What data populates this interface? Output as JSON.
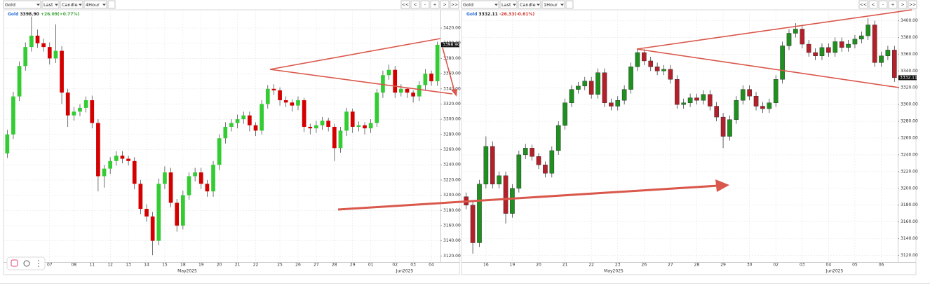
{
  "toolbars": [
    {
      "symbol": "Gold",
      "field": "Last",
      "style": "Candle",
      "interval": "4Hour",
      "nav": [
        "<<",
        "<",
        "-",
        "+",
        ">",
        ">>"
      ],
      "quote": {
        "symbol": "Gold",
        "price": "3398.90",
        "change": "+26.09(+0.77%)"
      }
    },
    {
      "symbol": "Gold",
      "field": "Last",
      "style": "Candle",
      "interval": "1Hour",
      "nav": [
        "<<",
        "<",
        "-",
        "+",
        ">",
        ">>"
      ],
      "quote": {
        "symbol": "Gold",
        "price": "3332.11",
        "change": "-26.33(-0.61%)"
      }
    }
  ],
  "chart_data": [
    {
      "type": "candlestick",
      "up_color": "#33cc33",
      "down_color": "#d40000",
      "change_color": "#3aa635",
      "grid": true,
      "ylim": [
        3112,
        3444
      ],
      "yticks": [
        {
          "value": 3120,
          "label": "3120.00"
        },
        {
          "value": 3140,
          "label": "3140.00"
        },
        {
          "value": 3160,
          "label": "3160.00"
        },
        {
          "value": 3180,
          "label": "3180.00"
        },
        {
          "value": 3200,
          "label": "3200.00"
        },
        {
          "value": 3220,
          "label": "3220.00"
        },
        {
          "value": 3240,
          "label": "3240.00"
        },
        {
          "value": 3260,
          "label": "3260.00"
        },
        {
          "value": 3280,
          "label": "3280.00"
        },
        {
          "value": 3300,
          "label": "3300.00"
        },
        {
          "value": 3320,
          "label": "3320.00"
        },
        {
          "value": 3340,
          "label": "3340.00"
        },
        {
          "value": 3360,
          "label": "3360.00"
        },
        {
          "value": 3380,
          "label": "3380.00"
        },
        {
          "value": 3400,
          "label": "3400.00"
        },
        {
          "value": 3420,
          "label": "3420.00"
        }
      ],
      "categories": [
        null,
        null,
        null,
        null,
        null,
        null,
        null,
        "07",
        null,
        null,
        null,
        "08",
        null,
        null,
        "11",
        null,
        null,
        "12",
        null,
        null,
        "13",
        null,
        null,
        "14",
        null,
        null,
        "15",
        null,
        null,
        "18",
        null,
        null,
        "19",
        null,
        null,
        "20",
        null,
        null,
        "21",
        null,
        null,
        "22",
        null,
        null,
        null,
        "25",
        null,
        null,
        "26",
        null,
        null,
        "27",
        null,
        null,
        "28",
        null,
        null,
        "29",
        null,
        null,
        "01",
        null,
        null,
        null,
        "02",
        null,
        null,
        "03",
        null,
        null,
        "04",
        null
      ],
      "x_periods": [
        "May2025",
        "Jun2025"
      ],
      "open": [
        3255,
        3280,
        3330,
        3370,
        3395,
        3410,
        3400,
        3395,
        3380,
        3390,
        3335,
        3305,
        3310,
        3315,
        3325,
        3295,
        3225,
        3235,
        3245,
        3252,
        3248,
        3245,
        3215,
        3182,
        3172,
        3140,
        3215,
        3230,
        3190,
        3160,
        3200,
        3225,
        3230,
        3215,
        3205,
        3240,
        3275,
        3290,
        3295,
        3300,
        3305,
        3292,
        3285,
        3320,
        3340,
        3338,
        3325,
        3322,
        3318,
        3325,
        3290,
        3288,
        3292,
        3298,
        3290,
        3262,
        3285,
        3310,
        3290,
        3292,
        3288,
        3295,
        3335,
        3358,
        3365,
        3335,
        3340,
        3335,
        3330,
        3345,
        3360,
        3350
      ],
      "high": [
        3286,
        3336,
        3376,
        3401,
        3435,
        3418,
        3406,
        3401,
        3425,
        3396,
        3340,
        3316,
        3320,
        3330,
        3331,
        3300,
        3240,
        3250,
        3258,
        3258,
        3252,
        3250,
        3220,
        3188,
        3178,
        3222,
        3238,
        3236,
        3195,
        3206,
        3230,
        3236,
        3236,
        3220,
        3245,
        3280,
        3296,
        3300,
        3306,
        3310,
        3310,
        3296,
        3325,
        3345,
        3346,
        3342,
        3330,
        3326,
        3330,
        3328,
        3294,
        3298,
        3303,
        3302,
        3294,
        3290,
        3315,
        3314,
        3297,
        3296,
        3300,
        3340,
        3364,
        3372,
        3370,
        3346,
        3342,
        3338,
        3350,
        3366,
        3364,
        3402
      ],
      "low": [
        3249,
        3274,
        3324,
        3364,
        3389,
        3394,
        3389,
        3372,
        3374,
        3320,
        3290,
        3298,
        3304,
        3309,
        3288,
        3205,
        3210,
        3228,
        3239,
        3242,
        3239,
        3208,
        3175,
        3165,
        3121,
        3134,
        3208,
        3184,
        3152,
        3155,
        3194,
        3218,
        3208,
        3198,
        3198,
        3233,
        3268,
        3284,
        3288,
        3294,
        3284,
        3278,
        3280,
        3314,
        3332,
        3318,
        3316,
        3310,
        3312,
        3283,
        3280,
        3282,
        3286,
        3284,
        3245,
        3256,
        3278,
        3282,
        3284,
        3280,
        3282,
        3290,
        3328,
        3352,
        3328,
        3330,
        3328,
        3322,
        3324,
        3338,
        3344,
        3344
      ],
      "close": [
        3280,
        3330,
        3370,
        3395,
        3410,
        3400,
        3395,
        3380,
        3390,
        3335,
        3305,
        3310,
        3315,
        3325,
        3295,
        3225,
        3235,
        3245,
        3252,
        3248,
        3245,
        3215,
        3182,
        3172,
        3140,
        3215,
        3230,
        3190,
        3160,
        3200,
        3225,
        3230,
        3215,
        3205,
        3240,
        3275,
        3290,
        3295,
        3300,
        3305,
        3292,
        3285,
        3320,
        3340,
        3338,
        3325,
        3322,
        3318,
        3325,
        3290,
        3288,
        3292,
        3298,
        3290,
        3262,
        3285,
        3310,
        3290,
        3292,
        3288,
        3295,
        3335,
        3358,
        3365,
        3335,
        3340,
        3335,
        3330,
        3345,
        3360,
        3350,
        3398
      ]
    },
    {
      "type": "candlestick",
      "up_color": "#1f8f1f",
      "down_color": "#b3202a",
      "change_color": "#d0352b",
      "grid": true,
      "ylim": [
        3112,
        3413
      ],
      "yticks": [
        {
          "value": 3120,
          "label": "3120.00"
        },
        {
          "value": 3140,
          "label": "3140.00"
        },
        {
          "value": 3160,
          "label": "3160.00"
        },
        {
          "value": 3180,
          "label": "3180.00"
        },
        {
          "value": 3200,
          "label": "3200.00"
        },
        {
          "value": 3220,
          "label": "3220.00"
        },
        {
          "value": 3240,
          "label": "3240.00"
        },
        {
          "value": 3260,
          "label": "3260.00"
        },
        {
          "value": 3280,
          "label": "3280.00"
        },
        {
          "value": 3300,
          "label": "3300.00"
        },
        {
          "value": 3320,
          "label": "3320.00"
        },
        {
          "value": 3340,
          "label": "3340.00"
        },
        {
          "value": 3360,
          "label": "3360.00"
        },
        {
          "value": 3380,
          "label": "3380.00"
        },
        {
          "value": 3400,
          "label": "3400.00"
        }
      ],
      "categories": [
        null,
        null,
        null,
        "16",
        null,
        null,
        null,
        "19",
        null,
        null,
        null,
        "20",
        null,
        null,
        null,
        "21",
        null,
        null,
        null,
        "22",
        null,
        null,
        null,
        "23",
        null,
        null,
        null,
        "26",
        null,
        null,
        null,
        "27",
        null,
        null,
        null,
        "28",
        null,
        null,
        null,
        "29",
        null,
        null,
        null,
        "30",
        null,
        null,
        null,
        "02",
        null,
        null,
        null,
        "03",
        null,
        null,
        null,
        "04",
        null,
        null,
        null,
        "05",
        null,
        null,
        null,
        "06",
        null,
        null
      ],
      "x_periods": [
        "May2025",
        "Jun2025"
      ],
      "open": [
        3190,
        3180,
        3135,
        3205,
        3250,
        3205,
        3215,
        3170,
        3200,
        3240,
        3248,
        3238,
        3228,
        3218,
        3245,
        3275,
        3302,
        3318,
        3322,
        3328,
        3312,
        3338,
        3302,
        3298,
        3305,
        3318,
        3345,
        3362,
        3352,
        3345,
        3340,
        3342,
        3330,
        3300,
        3302,
        3308,
        3305,
        3312,
        3298,
        3285,
        3262,
        3282,
        3305,
        3318,
        3310,
        3298,
        3295,
        3302,
        3330,
        3370,
        3385,
        3390,
        3372,
        3362,
        3358,
        3368,
        3362,
        3375,
        3368,
        3372,
        3378,
        3382,
        3395,
        3350,
        3358,
        3365
      ],
      "high": [
        3195,
        3185,
        3210,
        3262,
        3256,
        3220,
        3220,
        3205,
        3245,
        3253,
        3252,
        3242,
        3232,
        3250,
        3280,
        3307,
        3323,
        3327,
        3333,
        3333,
        3343,
        3343,
        3307,
        3310,
        3323,
        3350,
        3367,
        3366,
        3357,
        3350,
        3347,
        3347,
        3335,
        3307,
        3313,
        3313,
        3317,
        3317,
        3303,
        3290,
        3287,
        3310,
        3323,
        3323,
        3315,
        3303,
        3307,
        3335,
        3375,
        3390,
        3397,
        3395,
        3377,
        3367,
        3373,
        3373,
        3380,
        3380,
        3377,
        3383,
        3387,
        3403,
        3400,
        3363,
        3370,
        3370
      ],
      "low": [
        3175,
        3122,
        3130,
        3200,
        3200,
        3200,
        3158,
        3165,
        3195,
        3235,
        3233,
        3223,
        3213,
        3213,
        3240,
        3270,
        3297,
        3313,
        3317,
        3307,
        3307,
        3297,
        3293,
        3293,
        3300,
        3313,
        3340,
        3347,
        3340,
        3335,
        3335,
        3325,
        3295,
        3295,
        3297,
        3300,
        3300,
        3293,
        3280,
        3248,
        3257,
        3277,
        3300,
        3305,
        3293,
        3290,
        3290,
        3297,
        3325,
        3365,
        3380,
        3367,
        3357,
        3353,
        3353,
        3357,
        3357,
        3363,
        3363,
        3367,
        3373,
        3377,
        3345,
        3345,
        3353,
        3327
      ],
      "close": [
        3180,
        3135,
        3205,
        3250,
        3205,
        3215,
        3170,
        3200,
        3240,
        3248,
        3238,
        3228,
        3218,
        3245,
        3275,
        3302,
        3318,
        3322,
        3328,
        3312,
        3338,
        3302,
        3298,
        3305,
        3318,
        3345,
        3362,
        3352,
        3345,
        3340,
        3342,
        3330,
        3300,
        3302,
        3308,
        3305,
        3312,
        3298,
        3285,
        3262,
        3282,
        3305,
        3318,
        3310,
        3298,
        3295,
        3302,
        3330,
        3370,
        3385,
        3390,
        3372,
        3362,
        3358,
        3368,
        3362,
        3375,
        3368,
        3372,
        3378,
        3382,
        3395,
        3350,
        3358,
        3365,
        3332
      ]
    }
  ]
}
